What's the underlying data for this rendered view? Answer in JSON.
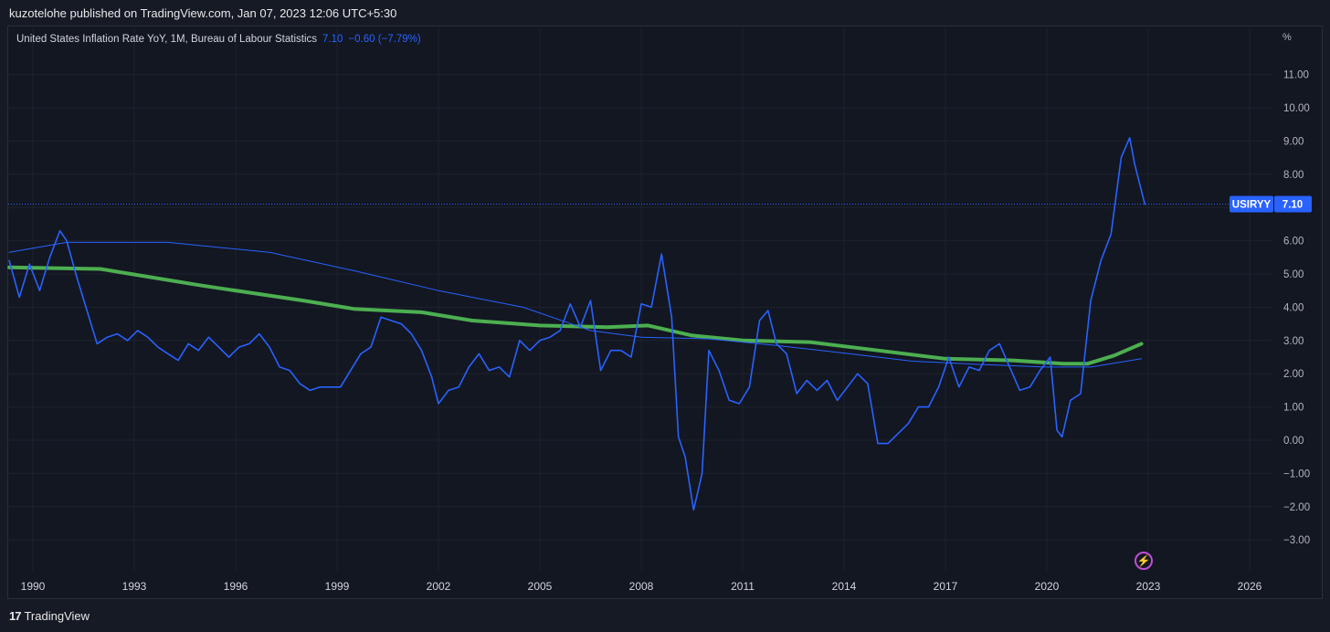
{
  "header": {
    "published": "kuzotelohe published on TradingView.com, Jan 07, 2023 12:06 UTC+5:30"
  },
  "legend": {
    "title": "United States Inflation Rate YoY, 1M, Bureau of Labour Statistics",
    "value": "7.10",
    "change": "−0.60 (−7.79%)"
  },
  "axis": {
    "unit": "%"
  },
  "price_tag": {
    "symbol": "USIRYY",
    "value": "7.10"
  },
  "footer": {
    "brand": "TradingView"
  },
  "icons": {
    "flash": "lightning-icon",
    "logo": "tradingview-logo-icon"
  },
  "colors": {
    "series": "#2962ff",
    "ma_long": "#2962ff",
    "ma_green": "#4caf50",
    "background": "#131722",
    "grid": "#1e222d"
  },
  "chart_data": {
    "type": "line",
    "title": "United States Inflation Rate YoY, 1M, Bureau of Labour Statistics",
    "xlabel": "",
    "ylabel": "%",
    "xlim": [
      1989.3,
      2028.3
    ],
    "ylim": [
      -3.5,
      12.0
    ],
    "yticks": [
      11,
      10,
      9,
      8,
      7,
      6,
      5,
      4,
      3,
      2,
      1,
      0,
      -1,
      -2,
      -3
    ],
    "ytick_labels": [
      "11.00",
      "10.00",
      "9.00",
      "8.00",
      "7.00",
      "6.00",
      "5.00",
      "4.00",
      "3.00",
      "2.00",
      "1.00",
      "0.00",
      "−1.00",
      "−2.00",
      "−3.00"
    ],
    "xticks": [
      1990,
      1993,
      1996,
      1999,
      2002,
      2005,
      2008,
      2011,
      2014,
      2017,
      2020,
      2023,
      2026
    ],
    "xtick_labels": [
      "1990",
      "1993",
      "1996",
      "1999",
      "2002",
      "2005",
      "2008",
      "2011",
      "2014",
      "2017",
      "2020",
      "2023",
      "2026"
    ],
    "grid": true,
    "last_value_line": 7.1,
    "series": [
      {
        "name": "USIRYY",
        "color": "#2962ff",
        "width": 1.6,
        "x": [
          1989.3,
          1989.6,
          1989.9,
          1990.2,
          1990.5,
          1990.8,
          1991.0,
          1991.3,
          1991.6,
          1991.9,
          1992.2,
          1992.5,
          1992.8,
          1993.1,
          1993.4,
          1993.7,
          1994.0,
          1994.3,
          1994.6,
          1994.9,
          1995.2,
          1995.5,
          1995.8,
          1996.1,
          1996.4,
          1996.7,
          1997.0,
          1997.3,
          1997.6,
          1997.9,
          1998.2,
          1998.5,
          1998.8,
          1999.1,
          1999.4,
          1999.7,
          2000.0,
          2000.3,
          2000.6,
          2000.9,
          2001.2,
          2001.5,
          2001.8,
          2002.0,
          2002.3,
          2002.6,
          2002.9,
          2003.2,
          2003.5,
          2003.8,
          2004.1,
          2004.4,
          2004.7,
          2005.0,
          2005.3,
          2005.6,
          2005.9,
          2006.2,
          2006.5,
          2006.8,
          2007.1,
          2007.4,
          2007.7,
          2008.0,
          2008.3,
          2008.6,
          2008.9,
          2009.1,
          2009.3,
          2009.55,
          2009.8,
          2010.0,
          2010.3,
          2010.6,
          2010.9,
          2011.2,
          2011.5,
          2011.75,
          2012.0,
          2012.3,
          2012.6,
          2012.9,
          2013.2,
          2013.5,
          2013.8,
          2014.1,
          2014.4,
          2014.7,
          2015.0,
          2015.3,
          2015.6,
          2015.9,
          2016.2,
          2016.5,
          2016.8,
          2017.1,
          2017.4,
          2017.7,
          2018.0,
          2018.3,
          2018.6,
          2018.9,
          2019.2,
          2019.5,
          2019.8,
          2020.1,
          2020.3,
          2020.45,
          2020.7,
          2021.0,
          2021.3,
          2021.6,
          2021.9,
          2022.2,
          2022.45,
          2022.6,
          2022.9
        ],
        "y": [
          5.4,
          4.3,
          5.3,
          4.5,
          5.5,
          6.3,
          6.0,
          4.9,
          3.9,
          2.9,
          3.1,
          3.2,
          3.0,
          3.3,
          3.1,
          2.8,
          2.6,
          2.4,
          2.9,
          2.7,
          3.1,
          2.8,
          2.5,
          2.8,
          2.9,
          3.2,
          2.8,
          2.2,
          2.1,
          1.7,
          1.5,
          1.6,
          1.6,
          1.6,
          2.1,
          2.6,
          2.8,
          3.7,
          3.6,
          3.5,
          3.2,
          2.7,
          1.9,
          1.1,
          1.5,
          1.6,
          2.2,
          2.6,
          2.1,
          2.2,
          1.9,
          3.0,
          2.7,
          3.0,
          3.1,
          3.3,
          4.1,
          3.4,
          4.2,
          2.1,
          2.7,
          2.7,
          2.5,
          4.1,
          4.0,
          5.6,
          3.7,
          0.1,
          -0.5,
          -2.1,
          -1.0,
          2.7,
          2.1,
          1.2,
          1.1,
          1.6,
          3.6,
          3.9,
          2.9,
          2.6,
          1.4,
          1.8,
          1.5,
          1.8,
          1.2,
          1.6,
          2.0,
          1.7,
          -0.1,
          -0.1,
          0.2,
          0.5,
          1.0,
          1.0,
          1.6,
          2.5,
          1.6,
          2.2,
          2.1,
          2.7,
          2.9,
          2.2,
          1.5,
          1.6,
          2.1,
          2.5,
          0.3,
          0.1,
          1.2,
          1.4,
          4.2,
          5.4,
          6.2,
          8.5,
          9.1,
          8.3,
          7.1
        ]
      },
      {
        "name": "",
        "color": "#2962ff",
        "width": 1.0,
        "x": [
          1989.3,
          1991.0,
          1994.0,
          1997.0,
          1999.5,
          2002.0,
          2004.5,
          2006.5,
          2008.0,
          2010.0,
          2012.0,
          2014.0,
          2016.0,
          2018.0,
          2020.0,
          2021.3,
          2022.8
        ],
        "y": [
          5.65,
          5.95,
          5.95,
          5.65,
          5.1,
          4.5,
          4.0,
          3.3,
          3.1,
          3.05,
          2.85,
          2.62,
          2.38,
          2.28,
          2.2,
          2.2,
          2.45
        ]
      },
      {
        "name": "",
        "color": "#4caf50",
        "width": 4.0,
        "x": [
          1989.3,
          1992.0,
          1995.0,
          1998.0,
          1999.5,
          2001.5,
          2003.0,
          2005.0,
          2007.0,
          2008.2,
          2009.5,
          2011.0,
          2013.0,
          2015.0,
          2017.0,
          2019.0,
          2020.5,
          2021.2,
          2022.0,
          2022.8
        ],
        "y": [
          5.2,
          5.15,
          4.65,
          4.2,
          3.95,
          3.85,
          3.6,
          3.45,
          3.4,
          3.45,
          3.15,
          3.0,
          2.95,
          2.7,
          2.45,
          2.4,
          2.3,
          2.3,
          2.55,
          2.9
        ]
      }
    ]
  }
}
